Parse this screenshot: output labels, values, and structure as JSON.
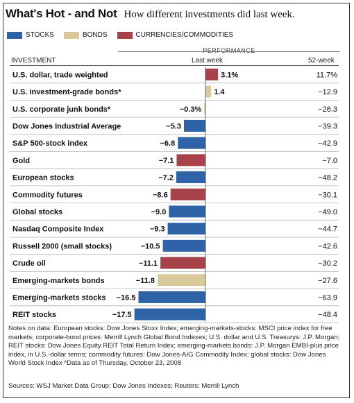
{
  "title": "What's Hot - and Not",
  "subtitle": "How different investments did last week.",
  "legend": [
    {
      "label": "STOCKS",
      "color": "#2f63a8"
    },
    {
      "label": "BONDS",
      "color": "#d9c99a"
    },
    {
      "label": "CURRENCIES/COMMODITIES",
      "color": "#a8424a"
    }
  ],
  "columns": {
    "investment": "INVESTMENT",
    "performance": "PERFORMANCE",
    "last_week": "Last week",
    "week52": "52-week"
  },
  "chart_data": {
    "type": "bar",
    "orientation": "horizontal",
    "categories": [
      "U.S. dollar, trade weighted",
      "U.S. investment-grade bonds*",
      "U.S. corporate junk bonds*",
      "Dow Jones Industrial Average",
      "S&P 500-stock index",
      "Gold",
      "European stocks",
      "Commodity futures",
      "Global stocks",
      "Nasdaq Composite Index",
      "Russell 2000 (small stocks)",
      "Crude oil",
      "Emerging-markets bonds",
      "Emerging-markets stocks",
      "REIT stocks"
    ],
    "values": [
      3.1,
      1.4,
      -0.3,
      -5.3,
      -6.8,
      -7.1,
      -7.2,
      -8.6,
      -9.0,
      -9.3,
      -10.5,
      -11.1,
      -11.8,
      -16.5,
      -17.5
    ],
    "value_labels": [
      "3.1%",
      "1.4",
      "−0.3%",
      "−5.3",
      "−6.8",
      "−7.1",
      "−7.2",
      "−8.6",
      "−9.0",
      "−9.3",
      "−10.5",
      "−11.1",
      "−11.8",
      "−16.5",
      "−17.5"
    ],
    "kinds": [
      "currency",
      "bond",
      "bond",
      "stock",
      "stock",
      "commodity",
      "stock",
      "commodity",
      "stock",
      "stock",
      "stock",
      "commodity",
      "bond",
      "stock",
      "stock"
    ],
    "week52": [
      "11.7%",
      "−12.9",
      "−26.3",
      "−39.3",
      "−42.9",
      "−7.0",
      "−48.2",
      "−30.1",
      "−49.0",
      "−44.7",
      "−42.6",
      "−30.2",
      "−27.6",
      "−63.9",
      "−48.4"
    ],
    "colors": {
      "stock": "#2f63a8",
      "bond": "#d9c99a",
      "currency": "#a8424a",
      "commodity": "#a8424a"
    },
    "xlim": [
      -17.5,
      3.1
    ]
  },
  "notes": "Notes on data: European stocks: Dow Jones Stoxx Index; emerging-markets-stocks: MSCI price index for free markets; corporate-bond prices: Merrill Lynch Global Bond Indexes; U.S. dollar and U.S. Treasurys: J.P. Morgan; REIT stocks: Dow Jones Equity REIT Total Return Index; emerging-markets bonds: J.P. Morgan EMBI-plus price index, in U.S.-dollar terms; commodity futures: Dow Jones-AIG Commodity Index; global stocks: Dow Jones World Stock Index *Data as of Thursday, October 23, 2008",
  "sources": "Sources: WSJ Market Data Group; Dow Jones Indexes; Reuters; Merrill Lynch"
}
